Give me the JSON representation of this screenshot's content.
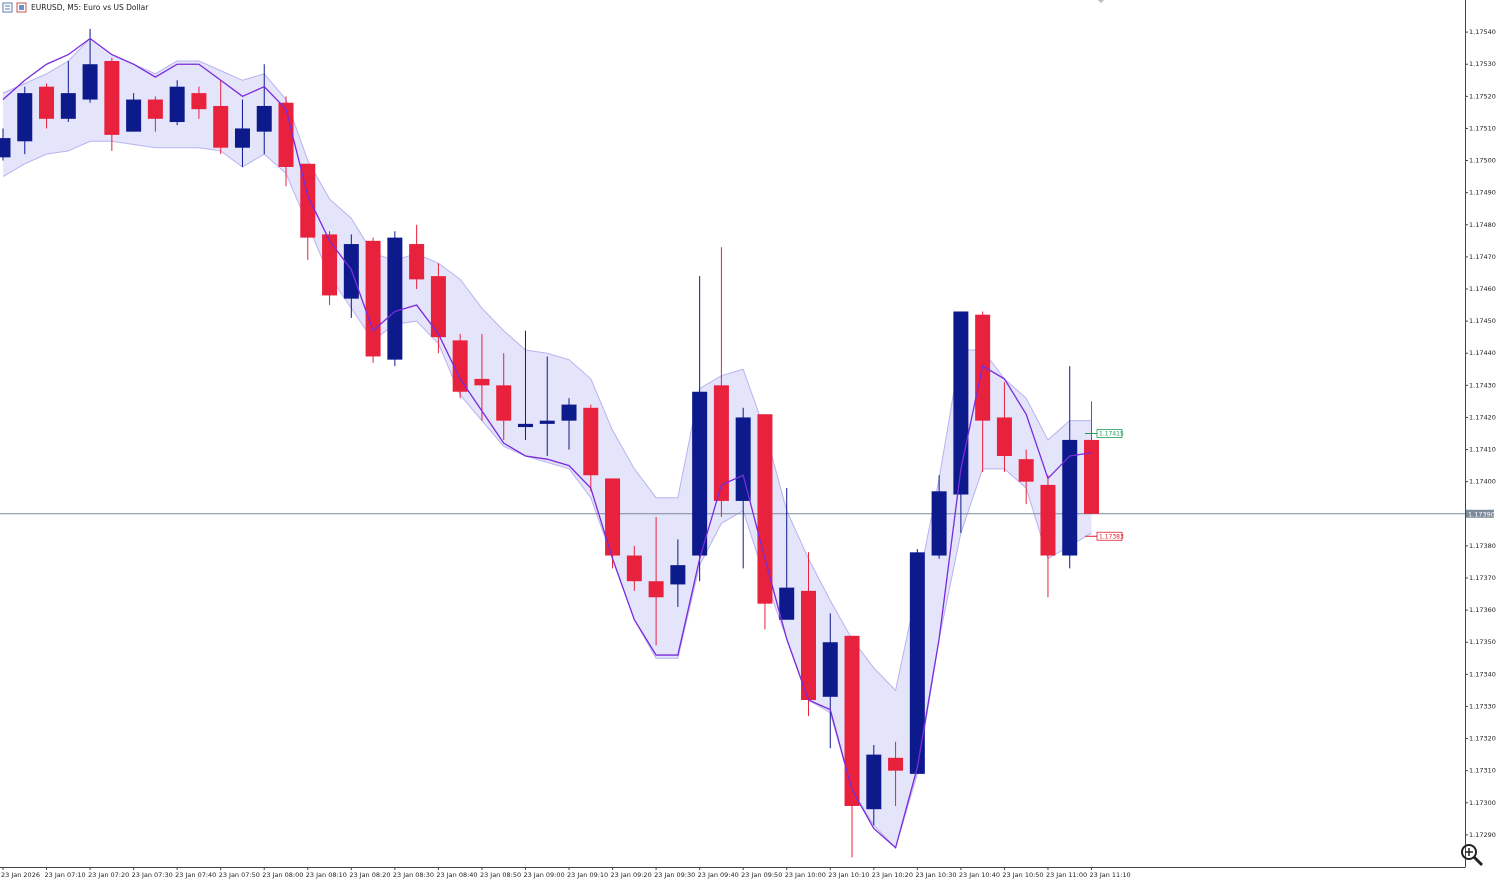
{
  "chart_data": {
    "type": "candlestick",
    "title": "EURUSD, M5:  Euro vs US Dollar",
    "categories": [
      "23 Jan 2026",
      null,
      "23 Jan 07:10",
      null,
      "23 Jan 07:20",
      null,
      "23 Jan 07:30",
      null,
      "23 Jan 07:40",
      null,
      "23 Jan 07:50",
      null,
      "23 Jan 08:00",
      null,
      "23 Jan 08:10",
      null,
      "23 Jan 08:20",
      null,
      "23 Jan 08:30",
      null,
      "23 Jan 08:40",
      null,
      "23 Jan 08:50",
      null,
      "23 Jan 09:00",
      null,
      "23 Jan 09:10",
      null,
      "23 Jan 09:20",
      null,
      "23 Jan 09:30",
      null,
      "23 Jan 09:40",
      null,
      "23 Jan 09:50",
      null,
      "23 Jan 10:00",
      null,
      "23 Jan 10:10",
      null,
      "23 Jan 10:20",
      null,
      "23 Jan 10:30",
      null,
      "23 Jan 10:40",
      null,
      "23 Jan 10:50",
      null,
      "23 Jan 11:00",
      null,
      "23 Jan 11:10"
    ],
    "open": [
      1.17501,
      1.17506,
      1.17523,
      1.17513,
      1.17519,
      1.17531,
      1.17509,
      1.17519,
      1.17512,
      1.17521,
      1.17517,
      1.17504,
      1.17509,
      1.17518,
      1.17499,
      1.17477,
      1.17457,
      1.17475,
      1.17438,
      1.17474,
      1.17464,
      1.17444,
      1.17432,
      1.1743,
      1.17417,
      1.17418,
      1.17419,
      1.17423,
      1.17401,
      1.17377,
      1.17369,
      1.17368,
      1.17377,
      1.1743,
      1.17394,
      1.17421,
      1.17357,
      1.17366,
      1.17333,
      1.17352,
      1.17298,
      1.17314,
      1.17309,
      1.17377,
      1.17396,
      1.17452,
      1.1742,
      1.17407,
      1.17399,
      1.17377,
      1.17413
    ],
    "high": [
      1.1751,
      1.17523,
      1.17524,
      1.17531,
      1.17541,
      1.17532,
      1.17521,
      1.1752,
      1.17525,
      1.17523,
      1.17525,
      1.17519,
      1.1753,
      1.1752,
      1.17499,
      1.17478,
      1.17477,
      1.17476,
      1.17478,
      1.1748,
      1.17468,
      1.17446,
      1.17446,
      1.1744,
      1.17447,
      1.17439,
      1.17426,
      1.17424,
      1.17401,
      1.1738,
      1.17389,
      1.17382,
      1.17464,
      1.17473,
      1.17423,
      1.17421,
      1.17398,
      1.17378,
      1.17359,
      1.17352,
      1.17318,
      1.17319,
      1.17379,
      1.17402,
      1.17453,
      1.17453,
      1.17431,
      1.1741,
      1.17402,
      1.17436,
      1.17425
    ],
    "low": [
      1.175,
      1.17502,
      1.1751,
      1.17512,
      1.17518,
      1.17503,
      1.17509,
      1.17509,
      1.17511,
      1.17513,
      1.17502,
      1.17498,
      1.17502,
      1.17492,
      1.17469,
      1.17455,
      1.17451,
      1.17437,
      1.17436,
      1.1746,
      1.1744,
      1.17426,
      1.17419,
      1.17413,
      1.17413,
      1.17408,
      1.1741,
      1.17397,
      1.17373,
      1.17366,
      1.17349,
      1.17361,
      1.17369,
      1.17389,
      1.17373,
      1.17354,
      1.17357,
      1.17327,
      1.17317,
      1.17283,
      1.17293,
      1.17299,
      1.17309,
      1.17376,
      1.17384,
      1.17403,
      1.17403,
      1.17393,
      1.17364,
      1.17373,
      1.1739
    ],
    "close": [
      1.17507,
      1.17521,
      1.17513,
      1.17521,
      1.1753,
      1.17508,
      1.17519,
      1.17513,
      1.17523,
      1.17516,
      1.17504,
      1.1751,
      1.17517,
      1.17498,
      1.17476,
      1.17458,
      1.17474,
      1.17439,
      1.17476,
      1.17463,
      1.17445,
      1.17428,
      1.1743,
      1.17419,
      1.17418,
      1.17419,
      1.17424,
      1.17402,
      1.17377,
      1.17369,
      1.17364,
      1.17374,
      1.17428,
      1.17394,
      1.1742,
      1.17362,
      1.17367,
      1.17332,
      1.1735,
      1.17299,
      1.17315,
      1.1731,
      1.17378,
      1.17397,
      1.17453,
      1.17419,
      1.17408,
      1.174,
      1.17377,
      1.17413,
      1.1739
    ],
    "up_color": "#0d1a8c",
    "down_color": "#e8213d",
    "indicator": {
      "line_color": "#7a2bdc",
      "band_color": "#e4e4fa",
      "band_edge_color": "#b9b3f0",
      "line": [
        1.17519,
        1.17525,
        1.1753,
        1.17533,
        1.17538,
        1.17533,
        1.1753,
        1.17526,
        1.1753,
        1.1753,
        1.17525,
        1.1752,
        1.17523,
        1.17516,
        1.17489,
        1.17475,
        1.17466,
        1.17447,
        1.17453,
        1.17455,
        1.17446,
        1.17432,
        1.17422,
        1.17412,
        1.17408,
        1.17407,
        1.17405,
        1.17398,
        1.17376,
        1.17357,
        1.17346,
        1.17346,
        1.17376,
        1.17399,
        1.17402,
        1.17376,
        1.17351,
        1.17332,
        1.17329,
        1.17304,
        1.17292,
        1.17286,
        1.17311,
        1.17351,
        1.17404,
        1.17436,
        1.17432,
        1.17421,
        1.17401,
        1.17408,
        1.17409
      ],
      "upper": [
        1.17521,
        1.17524,
        1.17527,
        1.17531,
        1.17538,
        1.17533,
        1.1753,
        1.17527,
        1.17531,
        1.17531,
        1.17528,
        1.17525,
        1.17527,
        1.17519,
        1.175,
        1.17488,
        1.17482,
        1.17471,
        1.17469,
        1.17471,
        1.17468,
        1.17463,
        1.17454,
        1.17447,
        1.17441,
        1.1744,
        1.17438,
        1.17432,
        1.17416,
        1.17404,
        1.17395,
        1.17395,
        1.17429,
        1.17433,
        1.17435,
        1.17416,
        1.17391,
        1.17376,
        1.17363,
        1.17351,
        1.17342,
        1.17335,
        1.17367,
        1.17401,
        1.17441,
        1.17441,
        1.17432,
        1.17426,
        1.17413,
        1.17419,
        1.17419
      ],
      "lower": [
        1.17495,
        1.17499,
        1.17502,
        1.17503,
        1.17506,
        1.17506,
        1.17505,
        1.17504,
        1.17504,
        1.17504,
        1.17503,
        1.17498,
        1.17502,
        1.17496,
        1.1748,
        1.17464,
        1.17454,
        1.17444,
        1.17449,
        1.1745,
        1.17443,
        1.17427,
        1.17419,
        1.17411,
        1.17408,
        1.17406,
        1.17404,
        1.17395,
        1.17376,
        1.17357,
        1.17345,
        1.17345,
        1.17374,
        1.17387,
        1.17391,
        1.1737,
        1.17351,
        1.17332,
        1.17328,
        1.17304,
        1.17293,
        1.17286,
        1.17309,
        1.17351,
        1.17384,
        1.17404,
        1.17404,
        1.17398,
        1.17376,
        1.1738,
        1.17384
      ]
    },
    "ylim": [
      1.1728,
      1.1755
    ],
    "yticks": [
      {
        "value": 1.1754,
        "label": "1.17540"
      },
      {
        "value": 1.1753,
        "label": "1.17530"
      },
      {
        "value": 1.1752,
        "label": "1.17520"
      },
      {
        "value": 1.1751,
        "label": "1.17510"
      },
      {
        "value": 1.175,
        "label": "1.17500"
      },
      {
        "value": 1.1749,
        "label": "1.17490"
      },
      {
        "value": 1.1748,
        "label": "1.17480"
      },
      {
        "value": 1.1747,
        "label": "1.17470"
      },
      {
        "value": 1.1746,
        "label": "1.17460"
      },
      {
        "value": 1.1745,
        "label": "1.17450"
      },
      {
        "value": 1.1744,
        "label": "1.17440"
      },
      {
        "value": 1.1743,
        "label": "1.17430"
      },
      {
        "value": 1.1742,
        "label": "1.17420"
      },
      {
        "value": 1.1741,
        "label": "1.17410"
      },
      {
        "value": 1.174,
        "label": "1.17400"
      },
      {
        "value": 1.1738,
        "label": "1.17380"
      },
      {
        "value": 1.1737,
        "label": "1.17370"
      },
      {
        "value": 1.1736,
        "label": "1.17360"
      },
      {
        "value": 1.1735,
        "label": "1.17350"
      },
      {
        "value": 1.1734,
        "label": "1.17340"
      },
      {
        "value": 1.1733,
        "label": "1.17330"
      },
      {
        "value": 1.1732,
        "label": "1.17320"
      },
      {
        "value": 1.1731,
        "label": "1.17310"
      },
      {
        "value": 1.173,
        "label": "1.17300"
      },
      {
        "value": 1.1729,
        "label": "1.17290"
      }
    ],
    "current_price": {
      "value": 1.1739,
      "label": "1.17390"
    },
    "price_marks": [
      {
        "value": 1.17415,
        "label": "1.17415",
        "color": "#1e9e55"
      },
      {
        "value": 1.17383,
        "label": "1.17383",
        "color": "#e02030"
      }
    ]
  }
}
